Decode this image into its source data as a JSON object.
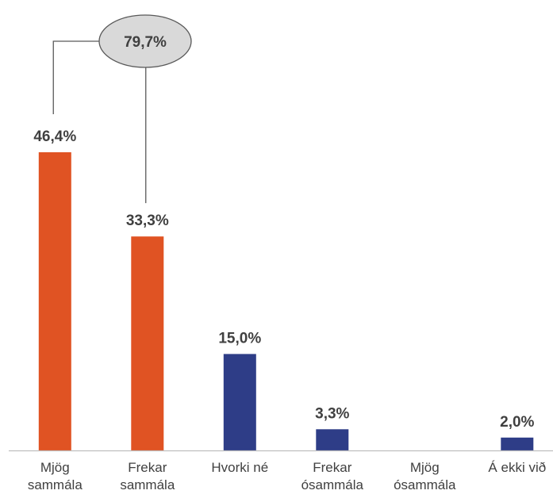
{
  "chart_data": {
    "type": "bar",
    "categories": [
      [
        "Mjög",
        "sammála"
      ],
      [
        "Frekar",
        "sammála"
      ],
      [
        "Hvorki né"
      ],
      [
        "Frekar",
        "ósammála"
      ],
      [
        "Mjög",
        "ósammála"
      ],
      [
        "Á ekki við"
      ]
    ],
    "values": [
      46.4,
      33.3,
      15.0,
      3.3,
      0,
      2.0
    ],
    "data_labels": [
      "46,4%",
      "33,3%",
      "15,0%",
      "3,3%",
      "",
      "2,0%"
    ],
    "bar_colors": [
      "#e05323",
      "#e05323",
      "#2e3d87",
      "#2e3d87",
      "#2e3d87",
      "#2e3d87"
    ],
    "ylim": [
      0,
      46.4
    ],
    "grid": false,
    "legend": "none",
    "callout": {
      "label": "79,7%",
      "groups": [
        0,
        1
      ],
      "fill": "#d9d9d9",
      "stroke": "#595959"
    },
    "axis_color": "#bfbfbf"
  }
}
